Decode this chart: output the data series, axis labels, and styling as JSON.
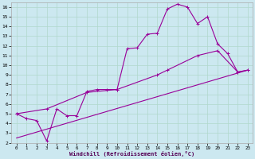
{
  "xlabel": "Windchill (Refroidissement éolien,°C)",
  "bg_color": "#cce8f0",
  "line_color": "#990099",
  "grid_color": "#b0d8cc",
  "xlim": [
    -0.5,
    23.5
  ],
  "ylim": [
    2,
    16.5
  ],
  "xticks": [
    0,
    1,
    2,
    3,
    4,
    5,
    6,
    7,
    8,
    9,
    10,
    11,
    12,
    13,
    14,
    15,
    16,
    17,
    18,
    19,
    20,
    21,
    22,
    23
  ],
  "yticks": [
    2,
    3,
    4,
    5,
    6,
    7,
    8,
    9,
    10,
    11,
    12,
    13,
    14,
    15,
    16
  ],
  "line1_x": [
    0,
    1,
    2,
    3,
    4,
    5,
    6,
    7,
    8,
    9,
    10,
    11,
    12,
    13,
    14,
    15,
    16,
    17,
    18,
    19,
    20,
    21,
    22,
    23
  ],
  "line1_y": [
    5.0,
    4.5,
    4.3,
    2.2,
    5.5,
    4.8,
    4.8,
    7.3,
    7.5,
    7.5,
    7.5,
    11.7,
    11.8,
    13.2,
    13.3,
    15.8,
    16.3,
    16.0,
    14.3,
    15.0,
    12.2,
    11.2,
    9.3,
    9.5
  ],
  "line2_x": [
    0,
    3,
    7,
    10,
    14,
    15,
    18,
    20,
    22,
    23
  ],
  "line2_y": [
    5.0,
    5.5,
    7.2,
    7.5,
    9.0,
    9.5,
    11.0,
    11.5,
    9.3,
    9.5
  ],
  "line3_x": [
    0,
    23
  ],
  "line3_y": [
    2.5,
    9.5
  ]
}
